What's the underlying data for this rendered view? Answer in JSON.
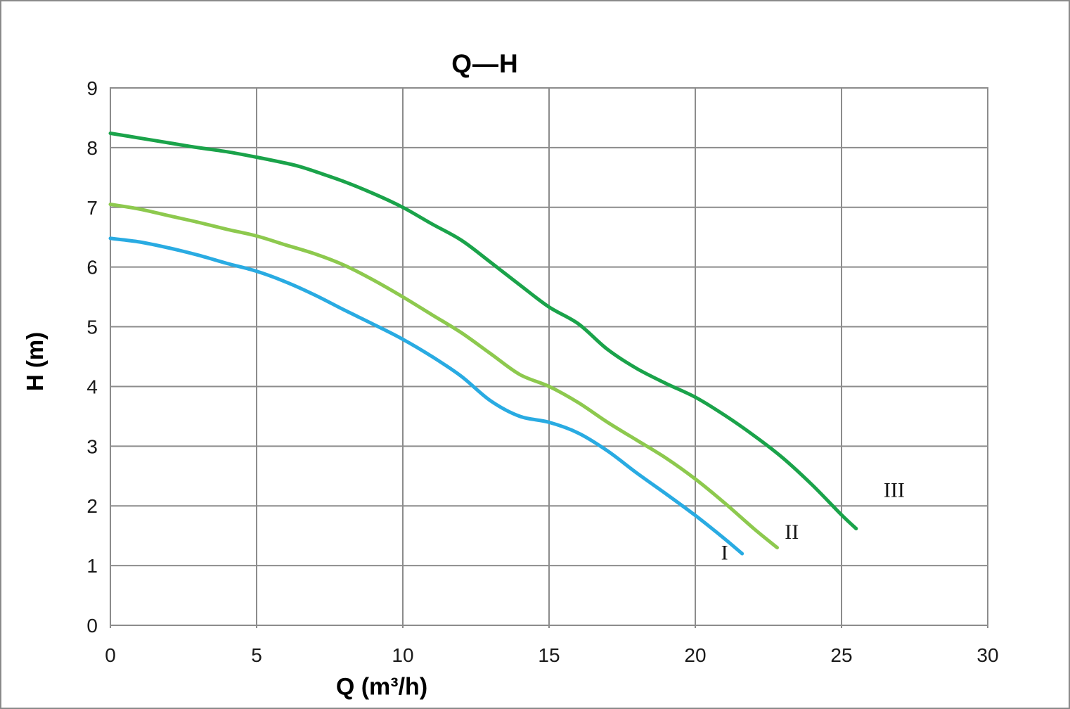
{
  "chart_data": {
    "type": "line",
    "title": "Q—H",
    "xlabel": "Q (m³/h)",
    "ylabel": "H (m)",
    "xlim": [
      0,
      30
    ],
    "ylim": [
      0,
      9
    ],
    "x_ticks": [
      0,
      5,
      10,
      15,
      20,
      25,
      30
    ],
    "y_ticks": [
      0,
      1,
      2,
      3,
      4,
      5,
      6,
      7,
      8,
      9
    ],
    "grid": "on",
    "grid_color": "#8c8c8c",
    "background_color": "#ffffff",
    "legend_position": "inline-labels-at-curve-ends",
    "series": [
      {
        "name": "I",
        "color": "#29ABE2",
        "label_anchor": [
          21.0,
          1.1
        ],
        "points": [
          [
            0,
            6.48
          ],
          [
            1,
            6.42
          ],
          [
            2,
            6.32
          ],
          [
            3,
            6.2
          ],
          [
            4,
            6.06
          ],
          [
            5,
            5.93
          ],
          [
            6,
            5.75
          ],
          [
            7,
            5.53
          ],
          [
            8,
            5.28
          ],
          [
            9,
            5.04
          ],
          [
            10,
            4.79
          ],
          [
            11,
            4.5
          ],
          [
            12,
            4.17
          ],
          [
            13,
            3.76
          ],
          [
            14,
            3.5
          ],
          [
            15,
            3.4
          ],
          [
            16,
            3.22
          ],
          [
            17,
            2.92
          ],
          [
            18,
            2.55
          ],
          [
            19,
            2.2
          ],
          [
            20,
            1.84
          ],
          [
            21,
            1.45
          ],
          [
            21.6,
            1.2
          ]
        ]
      },
      {
        "name": "II",
        "color": "#8DC94E",
        "label_anchor": [
          23.3,
          1.45
        ],
        "points": [
          [
            0,
            7.05
          ],
          [
            1,
            6.97
          ],
          [
            2,
            6.86
          ],
          [
            3,
            6.75
          ],
          [
            4,
            6.63
          ],
          [
            5,
            6.52
          ],
          [
            6,
            6.37
          ],
          [
            7,
            6.22
          ],
          [
            8,
            6.03
          ],
          [
            9,
            5.78
          ],
          [
            10,
            5.5
          ],
          [
            11,
            5.2
          ],
          [
            12,
            4.9
          ],
          [
            13,
            4.55
          ],
          [
            14,
            4.2
          ],
          [
            15,
            4.0
          ],
          [
            16,
            3.73
          ],
          [
            17,
            3.4
          ],
          [
            18,
            3.1
          ],
          [
            19,
            2.8
          ],
          [
            20,
            2.45
          ],
          [
            21,
            2.05
          ],
          [
            22,
            1.62
          ],
          [
            22.8,
            1.3
          ]
        ]
      },
      {
        "name": "III",
        "color": "#1AA34A",
        "label_anchor": [
          26.8,
          2.15
        ],
        "points": [
          [
            0,
            8.24
          ],
          [
            1,
            8.16
          ],
          [
            2,
            8.08
          ],
          [
            3,
            8.0
          ],
          [
            4,
            7.93
          ],
          [
            5,
            7.84
          ],
          [
            6,
            7.74
          ],
          [
            6.5,
            7.68
          ],
          [
            7,
            7.6
          ],
          [
            8,
            7.43
          ],
          [
            9,
            7.23
          ],
          [
            10,
            7.0
          ],
          [
            11,
            6.72
          ],
          [
            12,
            6.45
          ],
          [
            13,
            6.08
          ],
          [
            14,
            5.7
          ],
          [
            15,
            5.33
          ],
          [
            16,
            5.05
          ],
          [
            17,
            4.62
          ],
          [
            18,
            4.3
          ],
          [
            19,
            4.05
          ],
          [
            20,
            3.82
          ],
          [
            21,
            3.52
          ],
          [
            22,
            3.18
          ],
          [
            23,
            2.8
          ],
          [
            24,
            2.35
          ],
          [
            25,
            1.85
          ],
          [
            25.5,
            1.62
          ]
        ]
      }
    ]
  }
}
